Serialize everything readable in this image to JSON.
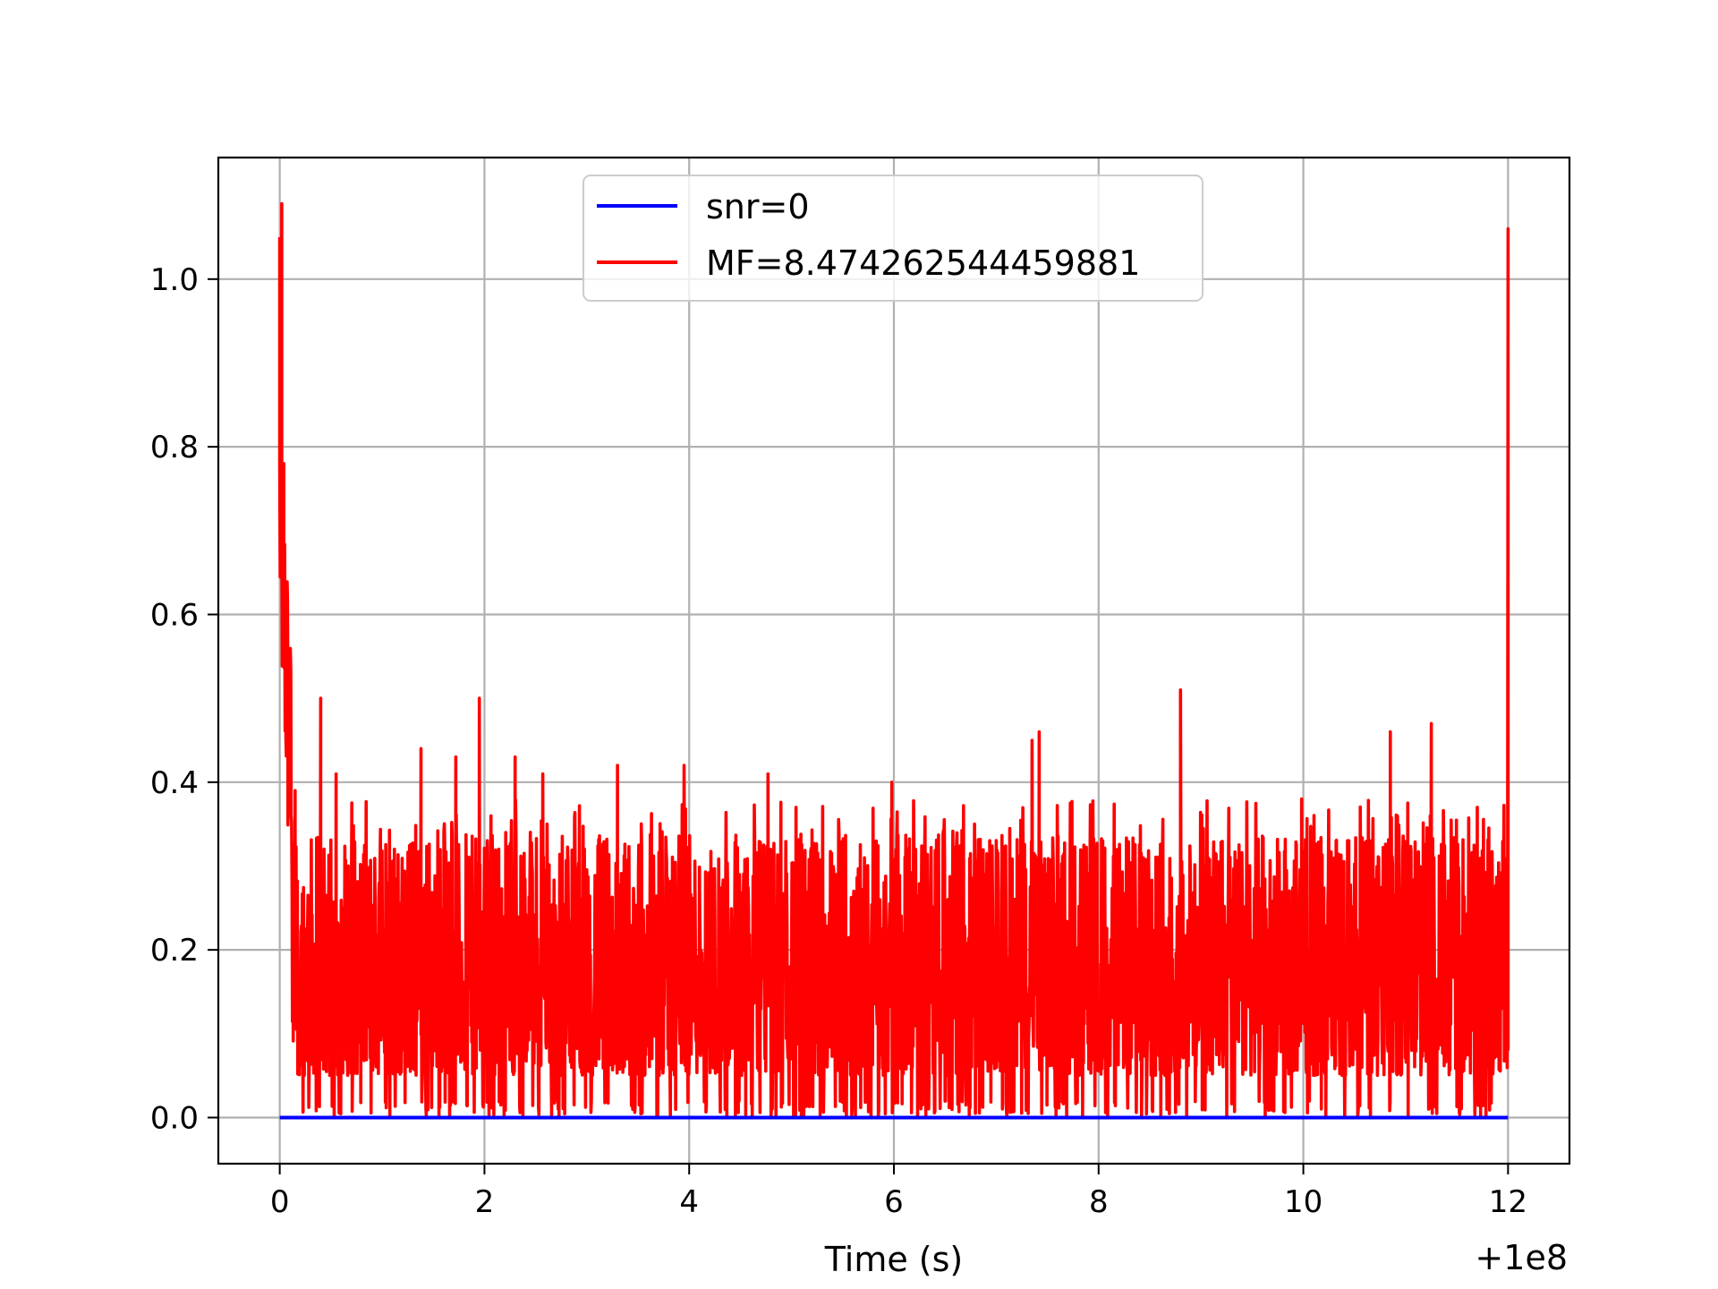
{
  "chart_data": {
    "type": "line",
    "title": "",
    "xlabel": "Time (s)",
    "ylabel": "",
    "x_offset_label": "+1e8",
    "xlim": [
      -0.6,
      12.6
    ],
    "ylim": [
      -0.055,
      1.145
    ],
    "x_ticks": [
      0,
      2,
      4,
      6,
      8,
      10,
      12
    ],
    "x_tick_labels": [
      "0",
      "2",
      "4",
      "6",
      "8",
      "10",
      "12"
    ],
    "y_ticks": [
      0.0,
      0.2,
      0.4,
      0.6,
      0.8,
      1.0
    ],
    "y_tick_labels": [
      "0.0",
      "0.2",
      "0.4",
      "0.6",
      "0.8",
      "1.0"
    ],
    "grid": true,
    "legend": {
      "placement": "upper center"
    },
    "series": [
      {
        "name": "snr=0",
        "color": "#0000ff",
        "x": [
          0,
          12
        ],
        "y": [
          0.0,
          0.0
        ]
      },
      {
        "name": "MF=8.474262544459881",
        "color": "#ff0000",
        "peaks": [
          {
            "x": 0.0,
            "y": 1.05
          },
          {
            "x": 0.01,
            "y": 0.99
          },
          {
            "x": 0.02,
            "y": 1.09
          },
          {
            "x": 0.04,
            "y": 0.78
          },
          {
            "x": 0.06,
            "y": 0.61
          },
          {
            "x": 0.08,
            "y": 0.5
          },
          {
            "x": 0.1,
            "y": 0.43
          },
          {
            "x": 0.15,
            "y": 0.39
          },
          {
            "x": 0.4,
            "y": 0.5
          },
          {
            "x": 0.55,
            "y": 0.41
          },
          {
            "x": 1.38,
            "y": 0.44
          },
          {
            "x": 1.72,
            "y": 0.43
          },
          {
            "x": 1.95,
            "y": 0.5
          },
          {
            "x": 2.3,
            "y": 0.43
          },
          {
            "x": 2.57,
            "y": 0.41
          },
          {
            "x": 3.3,
            "y": 0.42
          },
          {
            "x": 3.95,
            "y": 0.42
          },
          {
            "x": 4.77,
            "y": 0.41
          },
          {
            "x": 5.98,
            "y": 0.4
          },
          {
            "x": 7.35,
            "y": 0.45
          },
          {
            "x": 7.42,
            "y": 0.46
          },
          {
            "x": 8.8,
            "y": 0.51
          },
          {
            "x": 10.85,
            "y": 0.46
          },
          {
            "x": 11.25,
            "y": 0.47
          },
          {
            "x": 11.7,
            "y": 0.37
          },
          {
            "x": 12.0,
            "y": 1.06
          }
        ],
        "baseline": {
          "min": 0.0,
          "typical_low": 0.05,
          "typical_high": 0.3
        },
        "end_value": 0.08
      }
    ]
  }
}
